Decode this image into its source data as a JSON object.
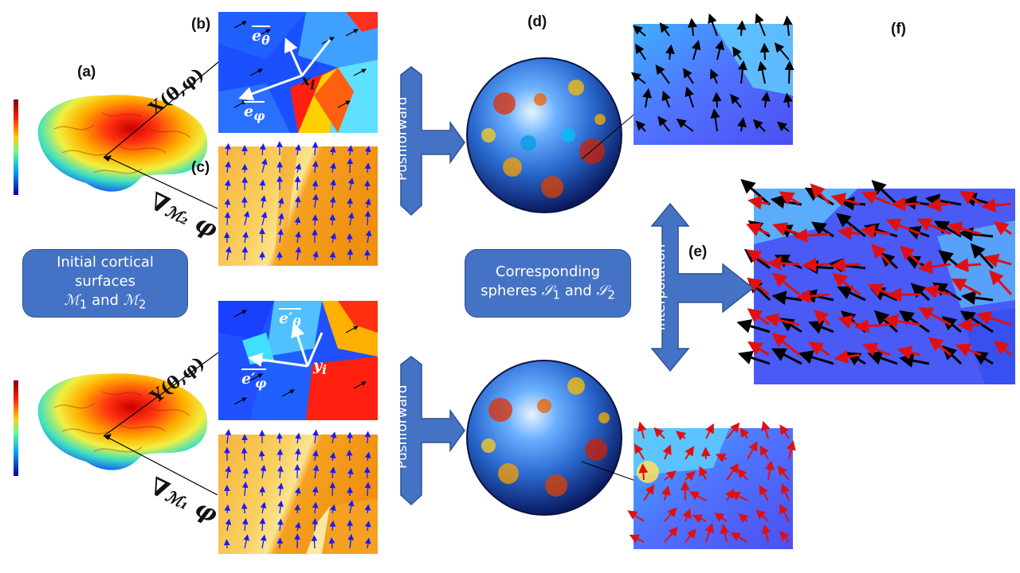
{
  "panel_labels": {
    "a": "(a)",
    "b": "(b)",
    "c": "(c)",
    "d": "(d)",
    "e": "(e)",
    "f": "(f)"
  },
  "boxes": {
    "initial": {
      "line1": "Initial cortical",
      "line2": "surfaces",
      "line3_a": "ℳ",
      "sub1": "1",
      "and": " and ",
      "line3_b": "ℳ",
      "sub2": "2"
    },
    "corresponding": {
      "line1": "Corresponding",
      "line2_a": "spheres ",
      "s": "𝒮",
      "sub1": "1",
      "and": " and ",
      "s2": "𝒮",
      "sub2": "2"
    }
  },
  "arrows": {
    "pushforward_top": "Pushforward",
    "pushforward_bottom": "Pushforward",
    "interpolation": "Interpolation"
  },
  "annotations": {
    "X_func": "X(θ,φ)",
    "Y_func": "Y(θ,φ)",
    "grad_M2": "∇",
    "grad_M2_sub": "ℳ₂",
    "grad_M2_phi": "φ",
    "grad_M1": "∇",
    "grad_M1_sub": "ℳ₁",
    "grad_M1_phi": "φ",
    "e_theta": "e",
    "e_theta_sub": "θ",
    "e_phi": "e",
    "e_phi_sub": "φ",
    "x_i": "x",
    "x_i_sub": "i",
    "e_theta_prime": "e′",
    "e_theta_prime_sub": "θ",
    "e_phi_prime": "e′",
    "e_phi_prime_sub": "φ",
    "y_i": "y",
    "y_i_sub": "i"
  },
  "colors": {
    "box_blue": "#4472c4",
    "box_border": "#2f528f",
    "vector_blue": "#1a1aff",
    "vector_red": "#e01010",
    "vector_black": "#000000"
  }
}
